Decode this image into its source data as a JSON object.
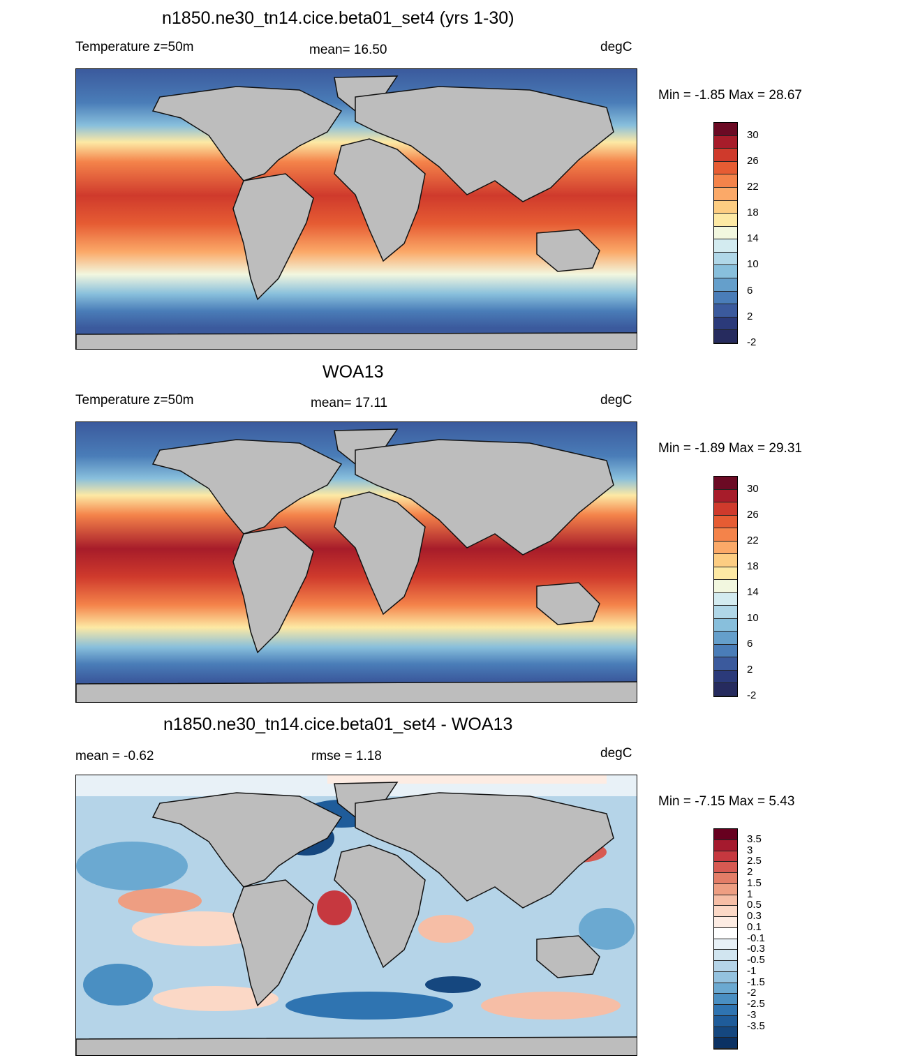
{
  "panels": [
    {
      "title": "n1850.ne30_tn14.cice.beta01_set4 (yrs 1-30)",
      "left_label": "Temperature z=50m",
      "center_label": "mean=  16.50",
      "right_label": "degC",
      "minmax": "Min =  -1.85 Max =  28.67",
      "colorbar": {
        "colors": [
          "#6b0a24",
          "#a71c2a",
          "#cf3a2c",
          "#e65c33",
          "#f4834a",
          "#fba968",
          "#fdcd82",
          "#fde9a4",
          "#f2f7df",
          "#d3ebf0",
          "#b0d7e8",
          "#88bfdc",
          "#659fcb",
          "#4a7db8",
          "#3b5a9d",
          "#2b3a7a",
          "#262b5e"
        ],
        "labels": [
          "30",
          "26",
          "22",
          "18",
          "14",
          "10",
          "6",
          "2",
          "-2"
        ]
      }
    },
    {
      "title": "WOA13",
      "left_label": "Temperature z=50m",
      "center_label": "mean=  17.11",
      "right_label": "degC",
      "minmax": "Min =  -1.89 Max =  29.31",
      "colorbar": {
        "colors": [
          "#6b0a24",
          "#a71c2a",
          "#cf3a2c",
          "#e65c33",
          "#f4834a",
          "#fba968",
          "#fdcd82",
          "#fde9a4",
          "#f2f7df",
          "#d3ebf0",
          "#b0d7e8",
          "#88bfdc",
          "#659fcb",
          "#4a7db8",
          "#3b5a9d",
          "#2b3a7a",
          "#262b5e"
        ],
        "labels": [
          "30",
          "26",
          "22",
          "18",
          "14",
          "10",
          "6",
          "2",
          "-2"
        ]
      }
    },
    {
      "title": "n1850.ne30_tn14.cice.beta01_set4 - WOA13",
      "left_label": "mean =  -0.62",
      "center_label": "rmse =   1.18",
      "right_label": "degC",
      "minmax": "Min =  -7.15 Max =   5.43",
      "colorbar": {
        "colors": [
          "#67001f",
          "#a51a2e",
          "#c6383f",
          "#d75a52",
          "#e37d67",
          "#ee9e82",
          "#f6bea6",
          "#fbd8c6",
          "#fdece3",
          "#ffffff",
          "#e8f1f7",
          "#d1e5f0",
          "#b5d4e8",
          "#94c2df",
          "#6ba9d1",
          "#4a8fc2",
          "#2f74b1",
          "#1f5c9a",
          "#15477f",
          "#0b3163"
        ],
        "labels": [
          "3.5",
          "3",
          "2.5",
          "2",
          "1.5",
          "1",
          "0.5",
          "0.3",
          "0.1",
          "-0.1",
          "-0.3",
          "-0.5",
          "-1",
          "-1.5",
          "-2",
          "-2.5",
          "-3",
          "-3.5"
        ]
      }
    }
  ],
  "map_colors": {
    "land": "#bdbdbd",
    "coast": "#111111"
  }
}
